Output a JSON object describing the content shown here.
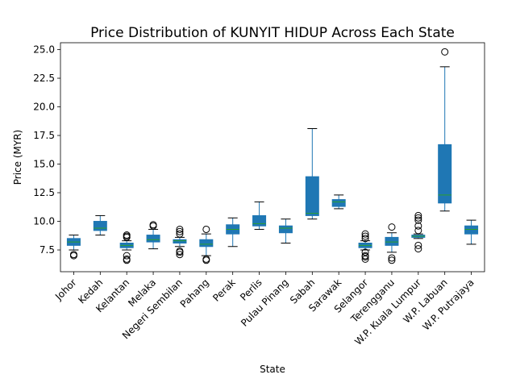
{
  "chart_data": {
    "type": "box",
    "title": "Price Distribution of KUNYIT HIDUP Across Each State",
    "xlabel": "State",
    "ylabel": "Price (MYR)",
    "ylim": [
      5.6,
      25.6
    ],
    "yticks": [
      "7.5",
      "10.0",
      "12.5",
      "15.0",
      "17.5",
      "20.0",
      "22.5",
      "25.0"
    ],
    "grid": false,
    "legend": "none",
    "colors": {
      "box": "#1f77b4",
      "median": "#2ca02c",
      "whisker": "#1f77b4",
      "flier": "#000000"
    },
    "categories": [
      "Johor",
      "Kedah",
      "Kelantan",
      "Melaka",
      "Negeri Sembilan",
      "Pahang",
      "Perak",
      "Perlis",
      "Pulau Pinang",
      "Sabah",
      "Sarawak",
      "Selangor",
      "Terengganu",
      "W.P. Kuala Lumpur",
      "W.P. Labuan",
      "W.P. Putrajaya"
    ],
    "boxes": [
      {
        "state": "Johor",
        "whislo": 7.5,
        "q1": 7.9,
        "med": 8.2,
        "q3": 8.5,
        "whishi": 8.8,
        "fliers": [
          7.0,
          7.1
        ]
      },
      {
        "state": "Kedah",
        "whislo": 8.8,
        "q1": 9.2,
        "med": 9.4,
        "q3": 10.0,
        "whishi": 10.5,
        "fliers": []
      },
      {
        "state": "Kelantan",
        "whislo": 7.5,
        "q1": 7.7,
        "med": 7.9,
        "q3": 8.1,
        "whishi": 8.3,
        "fliers": [
          7.0,
          6.7,
          6.6,
          8.6,
          8.8,
          8.7
        ]
      },
      {
        "state": "Melaka",
        "whislo": 7.6,
        "q1": 8.2,
        "med": 8.4,
        "q3": 8.8,
        "whishi": 9.3,
        "fliers": [
          9.6,
          9.7
        ]
      },
      {
        "state": "Negeri Sembilan",
        "whislo": 7.8,
        "q1": 8.1,
        "med": 8.3,
        "q3": 8.4,
        "whishi": 8.6,
        "fliers": [
          7.1,
          7.3,
          7.4,
          8.9,
          9.1,
          9.3
        ]
      },
      {
        "state": "Pahang",
        "whislo": 7.0,
        "q1": 7.8,
        "med": 8.0,
        "q3": 8.4,
        "whishi": 8.9,
        "fliers": [
          6.6,
          6.7,
          9.3
        ]
      },
      {
        "state": "Perak",
        "whislo": 7.8,
        "q1": 8.9,
        "med": 9.3,
        "q3": 9.7,
        "whishi": 10.3,
        "fliers": []
      },
      {
        "state": "Perlis",
        "whislo": 9.3,
        "q1": 9.6,
        "med": 9.8,
        "q3": 10.5,
        "whishi": 11.7,
        "fliers": []
      },
      {
        "state": "Pulau Pinang",
        "whislo": 8.1,
        "q1": 9.0,
        "med": 9.4,
        "q3": 9.6,
        "whishi": 10.2,
        "fliers": []
      },
      {
        "state": "Sabah",
        "whislo": 10.2,
        "q1": 10.5,
        "med": 10.7,
        "q3": 13.9,
        "whishi": 18.1,
        "fliers": []
      },
      {
        "state": "Sarawak",
        "whislo": 11.1,
        "q1": 11.3,
        "med": 11.7,
        "q3": 11.9,
        "whishi": 12.3,
        "fliers": []
      },
      {
        "state": "Selangor",
        "whislo": 7.5,
        "q1": 7.7,
        "med": 7.9,
        "q3": 8.1,
        "whishi": 8.3,
        "fliers": [
          6.7,
          6.9,
          7.0,
          7.3,
          8.5,
          8.7,
          8.9
        ]
      },
      {
        "state": "Terengganu",
        "whislo": 7.3,
        "q1": 7.9,
        "med": 8.2,
        "q3": 8.6,
        "whishi": 9.0,
        "fliers": [
          6.6,
          6.8,
          9.5
        ]
      },
      {
        "state": "W.P. Kuala Lumpur",
        "whislo": 8.5,
        "q1": 8.6,
        "med": 8.7,
        "q3": 8.8,
        "whishi": 8.9,
        "fliers": [
          7.6,
          7.9,
          9.2,
          9.6,
          10.1,
          10.3,
          10.5
        ]
      },
      {
        "state": "W.P. Labuan",
        "whislo": 10.9,
        "q1": 11.6,
        "med": 12.3,
        "q3": 16.7,
        "whishi": 23.5,
        "fliers": [
          24.8
        ]
      },
      {
        "state": "W.P. Putrajaya",
        "whislo": 8.0,
        "q1": 8.9,
        "med": 9.3,
        "q3": 9.6,
        "whishi": 10.1,
        "fliers": []
      }
    ]
  }
}
